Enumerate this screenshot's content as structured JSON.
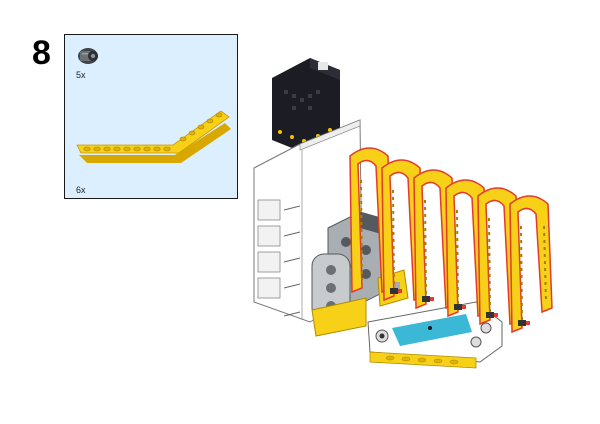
{
  "step": {
    "number": "8"
  },
  "parts": [
    {
      "name": "connector-peg",
      "quantity": "5x"
    },
    {
      "name": "angled-liftarm-beam",
      "quantity": "6x"
    }
  ],
  "colors": {
    "panel_bg": "#dcefff",
    "lego_yellow": "#f7d117",
    "lego_yellow_dark": "#d9a800",
    "light_gray": "#a9aeb2",
    "dark_gray": "#555a5e",
    "hub_black": "#1c1c24",
    "sensor_blue": "#3ab8d6",
    "red_edge": "#e23b2e"
  }
}
